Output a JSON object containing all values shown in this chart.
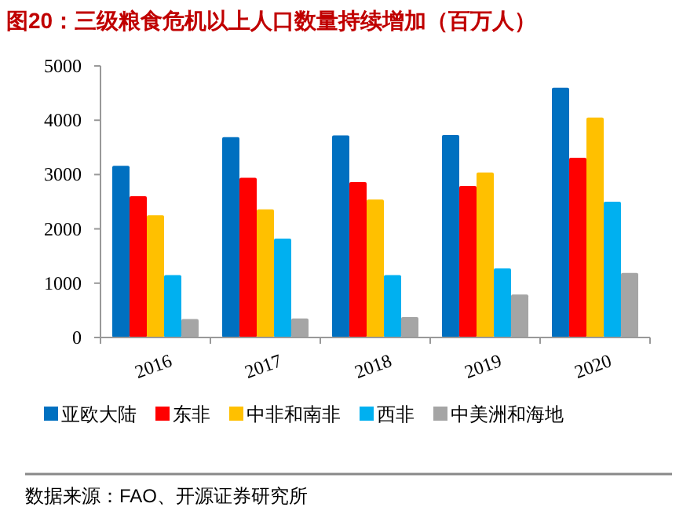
{
  "chart_data": {
    "type": "bar",
    "title": "图20：三级粮食危机以上人口数量持续增加（百万人）",
    "categories": [
      "2016",
      "2017",
      "2018",
      "2019",
      "2020"
    ],
    "series": [
      {
        "name": "亚欧大陆",
        "color": "#0070c0",
        "values": [
          3160,
          3690,
          3720,
          3730,
          4600
        ]
      },
      {
        "name": "东非",
        "color": "#ff0000",
        "values": [
          2600,
          2940,
          2860,
          2790,
          3310
        ]
      },
      {
        "name": "中非和南非",
        "color": "#ffc000",
        "values": [
          2250,
          2360,
          2540,
          3040,
          4050
        ]
      },
      {
        "name": "西非",
        "color": "#00b0f0",
        "values": [
          1150,
          1820,
          1150,
          1270,
          2500
        ]
      },
      {
        "name": "中美洲和海地",
        "color": "#a5a5a5",
        "values": [
          340,
          350,
          375,
          790,
          1190
        ]
      }
    ],
    "ylim": [
      0,
      5000
    ],
    "yticks": [
      0,
      1000,
      2000,
      3000,
      4000,
      5000
    ],
    "legend": "bottom",
    "annotations": [
      "数据来源：FAO、开源证券研究所"
    ]
  }
}
